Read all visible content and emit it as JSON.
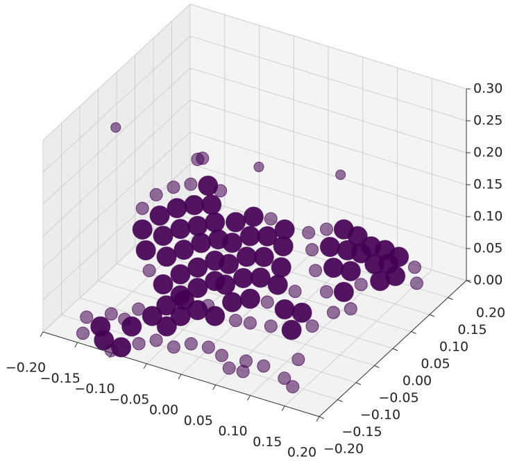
{
  "chart_data": {
    "type": "scatter3d",
    "color": "#440154",
    "grid": true,
    "xlim": [
      -0.2,
      0.2
    ],
    "ylim": [
      -0.2,
      0.2
    ],
    "zlim": [
      0,
      0.3
    ],
    "xticks": [
      {
        "value": -0.2,
        "label": "−0.20"
      },
      {
        "value": -0.15,
        "label": "−0.15"
      },
      {
        "value": -0.1,
        "label": "−0.10"
      },
      {
        "value": -0.05,
        "label": "−0.05"
      },
      {
        "value": 0,
        "label": "0.00"
      },
      0.05,
      {
        "value": 0.1,
        "label": "0.10"
      },
      0.15,
      {
        "value": 0.2,
        "label": "0.20"
      }
    ],
    "yticks": [
      {
        "value": -0.2,
        "label": "−0.20"
      },
      {
        "value": -0.15,
        "label": "−0.15"
      },
      {
        "value": -0.1,
        "label": "−0.10"
      },
      {
        "value": -0.05,
        "label": "−0.05"
      },
      {
        "value": 0,
        "label": "0.00"
      },
      0.05,
      {
        "value": 0.1,
        "label": "0.10"
      },
      0.15,
      {
        "value": 0.2,
        "label": "0.20"
      }
    ],
    "zticks": [
      {
        "value": 0,
        "label": "0.00"
      },
      0.05,
      {
        "value": 0.1,
        "label": "0.10"
      },
      0.15,
      {
        "value": 0.2,
        "label": "0.20"
      },
      0.25,
      {
        "value": 0.3,
        "label": "0.30"
      }
    ],
    "x": [
      -0.17,
      -0.144,
      -0.147,
      -0.126,
      -0.123,
      -0.1,
      -0.097,
      -0.084,
      -0.124,
      -0.097,
      -0.082,
      -0.067,
      -0.04,
      -0.025,
      -0.002,
      0.022,
      0.045,
      0.064,
      -0.155,
      -0.11,
      0.055,
      0.08,
      0.117,
      0.136,
      0.11,
      -0.104,
      -0.069,
      -0.072,
      -0.12,
      -0.1,
      -0.075,
      -0.05,
      -0.025,
      -0.007,
      -0.12,
      -0.095,
      -0.07,
      -0.045,
      -0.02,
      -0.115,
      -0.09,
      -0.065,
      -0.04,
      -0.015,
      -0.11,
      -0.085,
      -0.06,
      -0.035,
      -0.01,
      -0.09,
      -0.065,
      -0.04,
      -0.015,
      -0.065,
      -0.04,
      -0.015,
      -0.001,
      0.025,
      0.05,
      0.07,
      -0.006,
      0.02,
      0.045,
      0.068,
      -0.011,
      0.015,
      0.04,
      0.065,
      -0.041,
      -0.016,
      0.01,
      0.035,
      0.06,
      0.085,
      -0.056,
      -0.031,
      -0.006,
      0.02,
      0.045,
      0.07,
      0.095,
      -0.001,
      0.02,
      0.05,
      0.08,
      0.11,
      0.078,
      0.104,
      0.129,
      0.149,
      0.083,
      0.109,
      0.134,
      0.154,
      0.088,
      0.114,
      0.139,
      0.104,
      0.129,
      0.154,
      0.114,
      0.139,
      0.142,
      0.162,
      0.182,
      0.147,
      0.167,
      -0.049,
      -0.056,
      -0.148,
      0.006,
      0.071,
      0.189,
      0.192,
      0.139,
      0.161
    ],
    "y": [
      -0.138,
      -0.149,
      -0.114,
      -0.117,
      -0.085,
      -0.091,
      -0.058,
      -0.034,
      -0.177,
      -0.181,
      -0.161,
      -0.142,
      -0.145,
      -0.126,
      -0.122,
      -0.131,
      -0.154,
      -0.152,
      -0.176,
      -0.128,
      -0.127,
      -0.126,
      -0.139,
      -0.152,
      -0.088,
      -0.195,
      -0.072,
      -0.104,
      -0.08,
      -0.08,
      -0.08,
      -0.08,
      -0.08,
      -0.08,
      -0.08,
      -0.08,
      -0.08,
      -0.08,
      -0.08,
      -0.08,
      -0.08,
      -0.08,
      -0.08,
      -0.08,
      -0.08,
      -0.08,
      -0.08,
      -0.08,
      -0.08,
      -0.08,
      -0.08,
      -0.08,
      -0.08,
      -0.08,
      -0.08,
      -0.08,
      -0.05,
      -0.05,
      -0.05,
      -0.05,
      -0.05,
      -0.05,
      -0.05,
      -0.05,
      -0.05,
      -0.05,
      -0.05,
      -0.05,
      -0.05,
      -0.05,
      -0.05,
      -0.05,
      -0.05,
      -0.05,
      -0.05,
      -0.05,
      -0.05,
      -0.05,
      -0.05,
      -0.05,
      -0.05,
      -0.05,
      -0.05,
      -0.05,
      -0.05,
      -0.05,
      0,
      0,
      0,
      0,
      0,
      0,
      0,
      0,
      0,
      0,
      0,
      0,
      0,
      0,
      0,
      0,
      0.05,
      0.05,
      0.05,
      0.05,
      0.05,
      -0.05,
      -0.05,
      -0.1,
      0,
      0.1,
      0.08,
      0.08,
      0.08,
      0.08
    ],
    "z": [
      0,
      0,
      0,
      0,
      0,
      0,
      0,
      0,
      0,
      0,
      0,
      0,
      0,
      0,
      0,
      0,
      0,
      0,
      0,
      0,
      0,
      0,
      0,
      0,
      0,
      0,
      0,
      0,
      0.156,
      0.184,
      0.204,
      0.217,
      0.223,
      0.221,
      0.123,
      0.153,
      0.173,
      0.186,
      0.195,
      0.092,
      0.123,
      0.142,
      0.155,
      0.169,
      0.062,
      0.092,
      0.111,
      0.13,
      0.144,
      0.047,
      0.071,
      0.09,
      0.109,
      0.038,
      0.058,
      0.077,
      0.158,
      0.175,
      0.18,
      0.17,
      0.124,
      0.143,
      0.151,
      0.143,
      0.089,
      0.109,
      0.117,
      0.109,
      0.014,
      0.055,
      0.074,
      0.083,
      0.08,
      0.078,
      0.002,
      0.001,
      0.031,
      0.045,
      0.048,
      0.045,
      0.048,
      0.004,
      0.007,
      0.012,
      0.016,
      0.032,
      0.141,
      0.155,
      0.163,
      0.159,
      0.116,
      0.129,
      0.132,
      0.134,
      0.085,
      0.098,
      0.101,
      0.057,
      0.065,
      0.085,
      0.028,
      0.042,
      0.114,
      0.115,
      0.111,
      0.088,
      0.095,
      0.242,
      0.238,
      0.284,
      0.22,
      0.176,
      0.081,
      0.057,
      0.043,
      0.058
    ]
  }
}
